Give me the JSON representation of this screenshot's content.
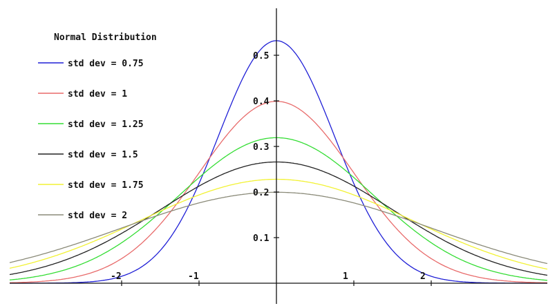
{
  "chart_data": {
    "type": "line",
    "title": "Normal Distribution",
    "xlabel": "",
    "ylabel": "",
    "xlim": [
      -3.5,
      3.5
    ],
    "ylim": [
      0,
      0.6
    ],
    "x_ticks": [
      {
        "value": -2,
        "label": "-2"
      },
      {
        "value": -1,
        "label": "-1"
      },
      {
        "value": 1,
        "label": "1"
      },
      {
        "value": 2,
        "label": "2"
      }
    ],
    "y_ticks": [
      {
        "value": 0.1,
        "label": "0.1"
      },
      {
        "value": 0.2,
        "label": "0.2"
      },
      {
        "value": 0.3,
        "label": "0.3"
      },
      {
        "value": 0.4,
        "label": "0.4"
      },
      {
        "value": 0.5,
        "label": "0.5"
      }
    ],
    "legend_position": "top-left",
    "grid": false,
    "series": [
      {
        "name": "std dev = 0.75",
        "sigma": 0.75,
        "mean": 0,
        "color": "#1f1fd6",
        "peak": 0.532
      },
      {
        "name": "std dev = 1",
        "sigma": 1.0,
        "mean": 0,
        "color": "#e86a6a",
        "peak": 0.399
      },
      {
        "name": "std dev = 1.25",
        "sigma": 1.25,
        "mean": 0,
        "color": "#33dd33",
        "peak": 0.319
      },
      {
        "name": "std dev = 1.5",
        "sigma": 1.5,
        "mean": 0,
        "color": "#222222",
        "peak": 0.266
      },
      {
        "name": "std dev = 1.75",
        "sigma": 1.75,
        "mean": 0,
        "color": "#f2f233",
        "peak": 0.228
      },
      {
        "name": "std dev = 2",
        "sigma": 2.0,
        "mean": 0,
        "color": "#8a8a78",
        "peak": 0.199
      }
    ]
  }
}
